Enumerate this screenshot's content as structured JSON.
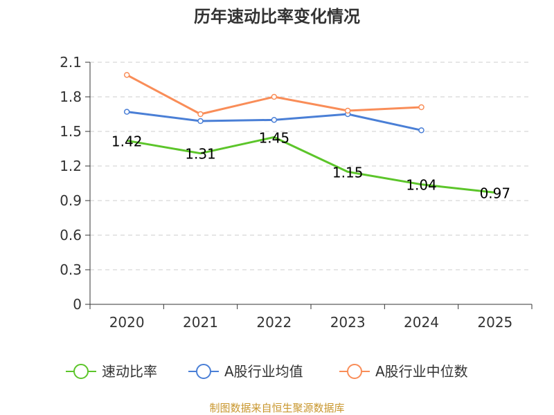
{
  "chart_data": {
    "type": "line",
    "title": "历年速动比率变化情况",
    "categories": [
      "2020",
      "2021",
      "2022",
      "2023",
      "2024",
      "2025"
    ],
    "y_ticks": [
      "0",
      "0.3",
      "0.6",
      "0.9",
      "1.2",
      "1.5",
      "1.8",
      "2.1"
    ],
    "ylim": [
      0,
      2.1
    ],
    "grid": true,
    "legend_position": "bottom",
    "series": [
      {
        "name": "速动比率",
        "color": "#5cc52a",
        "values": [
          1.42,
          1.31,
          1.45,
          1.15,
          1.04,
          0.97
        ],
        "labels": [
          "1.42",
          "1.31",
          "1.45",
          "1.15",
          "1.04",
          "0.97"
        ]
      },
      {
        "name": "A股行业均值",
        "color": "#4a7fd6",
        "values": [
          1.67,
          1.59,
          1.6,
          1.65,
          1.51,
          null
        ]
      },
      {
        "name": "A股行业中位数",
        "color": "#f98d58",
        "values": [
          1.99,
          1.65,
          1.8,
          1.68,
          1.71,
          null
        ]
      }
    ],
    "source": "制图数据来自恒生聚源数据库"
  }
}
